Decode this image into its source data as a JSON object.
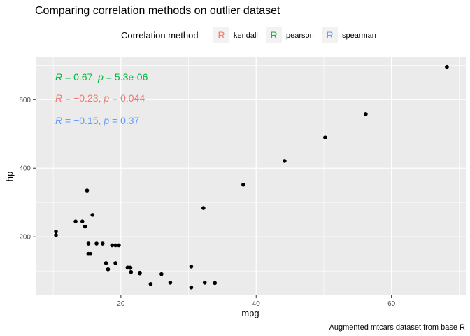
{
  "chart_data": {
    "type": "scatter",
    "title": "Comparing correlation methods on outlier dataset",
    "xlabel": "mpg",
    "ylabel": "hp",
    "caption": "Augmented mtcars dataset from base R",
    "xlim": [
      7.4,
      71
    ],
    "ylim": [
      29,
      723
    ],
    "x_ticks": [
      20,
      40,
      60
    ],
    "y_ticks": [
      200,
      400,
      600
    ],
    "grid": true,
    "legend": {
      "title": "Correlation method",
      "position": "top",
      "key_glyph": "R",
      "entries": [
        {
          "label": "kendall",
          "color": "#F8766D"
        },
        {
          "label": "pearson",
          "color": "#00BA38"
        },
        {
          "label": "spearman",
          "color": "#619CFF"
        }
      ]
    },
    "annotations": [
      {
        "method": "pearson",
        "r_label": "R",
        "p_label": "p",
        "r": "0.67",
        "p": "5.3e-06",
        "color": "#00BA38"
      },
      {
        "method": "kendall",
        "r_label": "R",
        "p_label": "p",
        "r": "−0.23",
        "p": "0.044",
        "color": "#F8766D"
      },
      {
        "method": "spearman",
        "r_label": "R",
        "p_label": "p",
        "r": "−0.15",
        "p": "0.37",
        "color": "#619CFF"
      }
    ],
    "points": [
      {
        "x": 21.0,
        "y": 110
      },
      {
        "x": 21.0,
        "y": 110
      },
      {
        "x": 22.8,
        "y": 93
      },
      {
        "x": 21.4,
        "y": 110
      },
      {
        "x": 18.7,
        "y": 175
      },
      {
        "x": 18.1,
        "y": 105
      },
      {
        "x": 14.3,
        "y": 245
      },
      {
        "x": 24.4,
        "y": 62
      },
      {
        "x": 22.8,
        "y": 95
      },
      {
        "x": 19.2,
        "y": 123
      },
      {
        "x": 17.8,
        "y": 123
      },
      {
        "x": 16.4,
        "y": 180
      },
      {
        "x": 17.3,
        "y": 180
      },
      {
        "x": 15.2,
        "y": 180
      },
      {
        "x": 10.4,
        "y": 205
      },
      {
        "x": 10.4,
        "y": 215
      },
      {
        "x": 14.7,
        "y": 230
      },
      {
        "x": 32.4,
        "y": 66
      },
      {
        "x": 30.4,
        "y": 52
      },
      {
        "x": 33.9,
        "y": 65
      },
      {
        "x": 21.5,
        "y": 97
      },
      {
        "x": 15.5,
        "y": 150
      },
      {
        "x": 15.2,
        "y": 150
      },
      {
        "x": 13.3,
        "y": 245
      },
      {
        "x": 19.2,
        "y": 175
      },
      {
        "x": 27.3,
        "y": 66
      },
      {
        "x": 26.0,
        "y": 91
      },
      {
        "x": 30.4,
        "y": 113
      },
      {
        "x": 15.8,
        "y": 264
      },
      {
        "x": 19.7,
        "y": 175
      },
      {
        "x": 15.0,
        "y": 335
      },
      {
        "x": 21.4,
        "y": 109
      },
      {
        "x": 32.2,
        "y": 284
      },
      {
        "x": 38.1,
        "y": 352
      },
      {
        "x": 44.2,
        "y": 421
      },
      {
        "x": 50.2,
        "y": 490
      },
      {
        "x": 56.2,
        "y": 558
      },
      {
        "x": 68.2,
        "y": 695
      }
    ]
  }
}
